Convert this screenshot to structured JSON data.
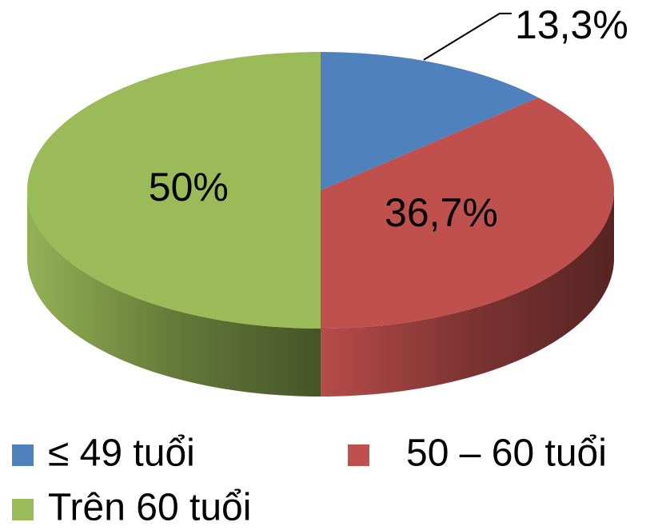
{
  "chart_data": {
    "type": "pie",
    "categories": [
      "≤ 49 tuổi",
      "50 – 60 tuổi",
      "Trên 60 tuổi"
    ],
    "values": [
      13.3,
      36.7,
      50
    ],
    "value_labels": [
      "13,3%",
      "36,7%",
      "50%"
    ],
    "colors": [
      "#4f81bd",
      "#c0504d",
      "#9bbb59"
    ],
    "legend": "bottom"
  }
}
